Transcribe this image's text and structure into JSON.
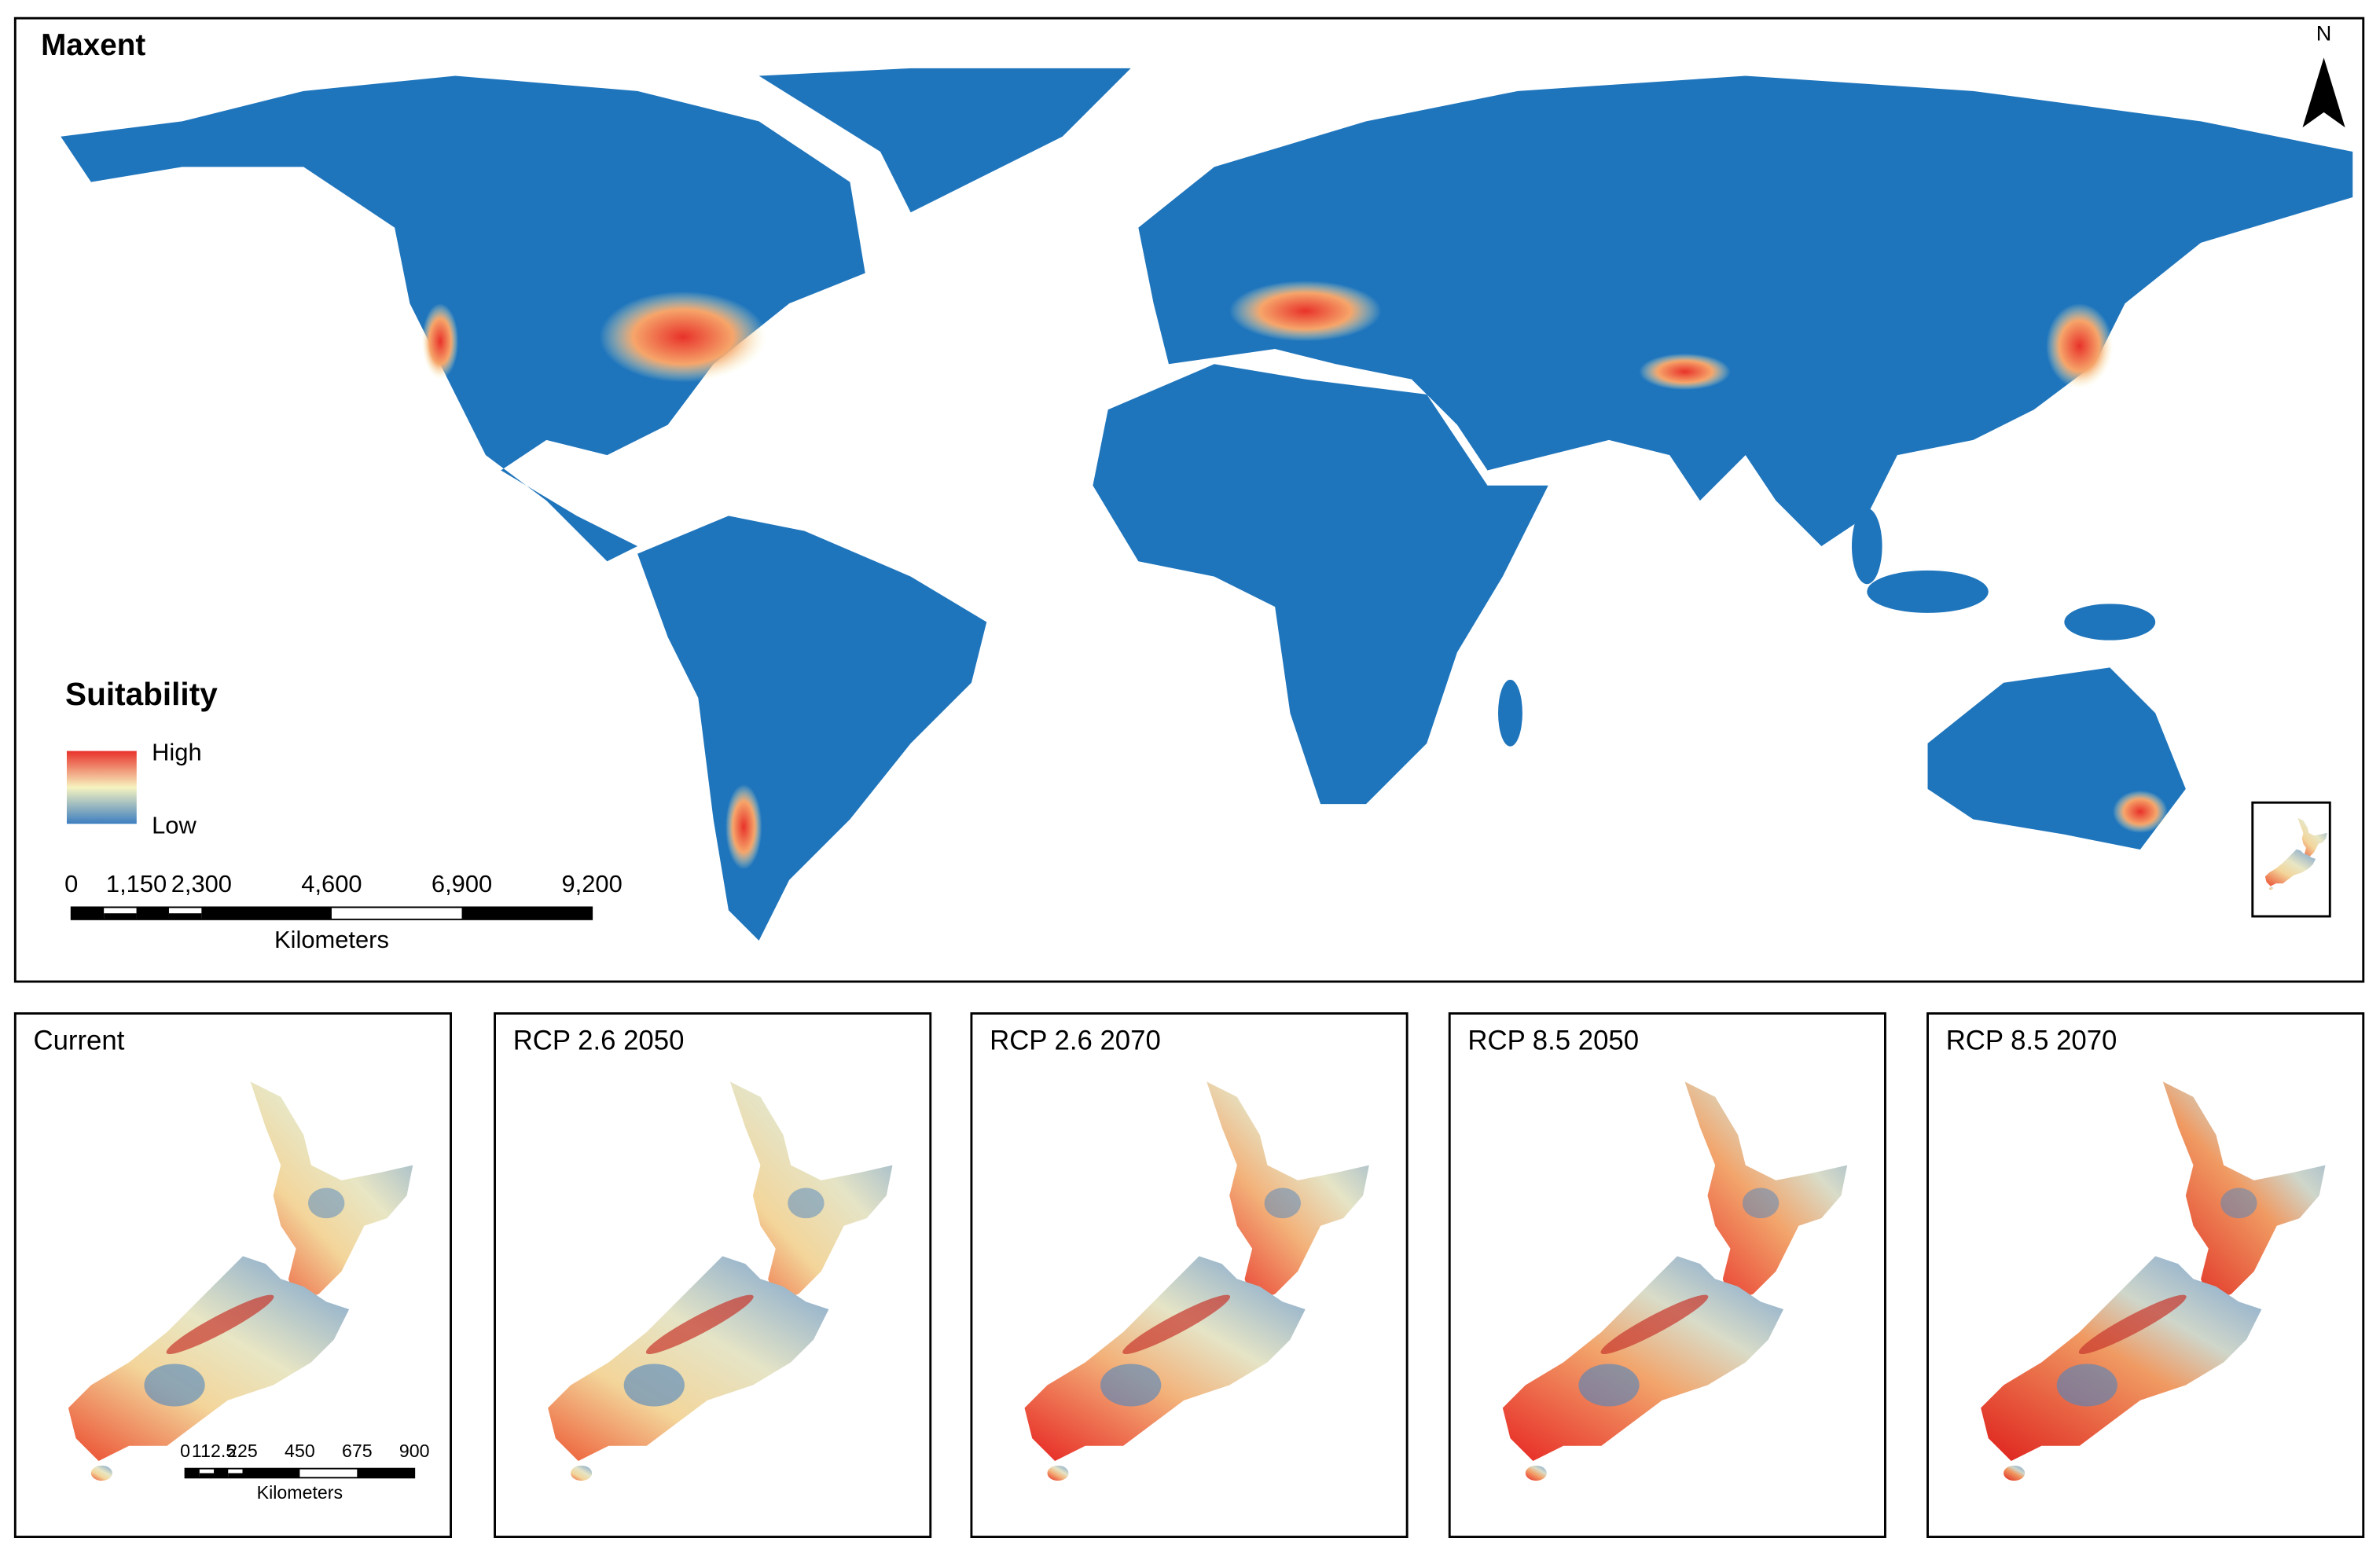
{
  "main_map": {
    "title": "Maxent",
    "north_arrow": "N",
    "legend": {
      "title": "Suitability",
      "high": "High",
      "low": "Low"
    },
    "scale_bar": {
      "labels": [
        "0",
        "1,150",
        "2,300",
        "4,600",
        "6,900",
        "9,200"
      ],
      "unit": "Kilometers"
    }
  },
  "panels": [
    {
      "title": "Current"
    },
    {
      "title": "RCP 2.6 2050"
    },
    {
      "title": "RCP 2.6 2070"
    },
    {
      "title": "RCP 8.5 2050"
    },
    {
      "title": "RCP 8.5 2070"
    }
  ],
  "panel_scale_bar": {
    "labels": [
      "0",
      "112.5",
      "225",
      "450",
      "675",
      "900"
    ],
    "unit": "Kilometers"
  }
}
